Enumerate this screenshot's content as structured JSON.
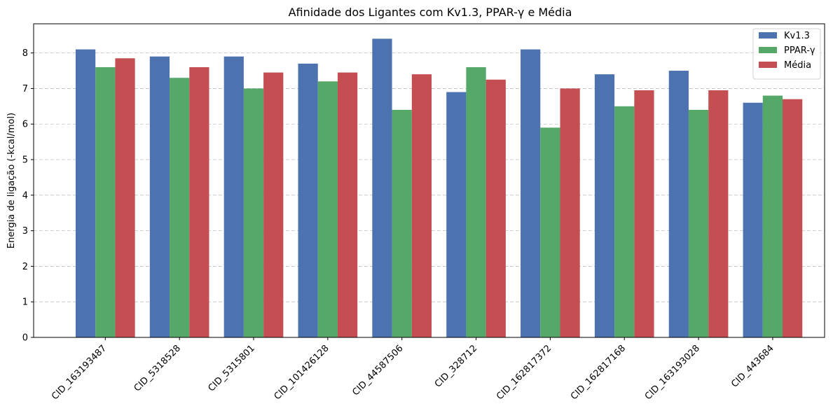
{
  "chart_data": {
    "type": "bar",
    "title": "Afinidade dos Ligantes com Kv1.3, PPAR-γ e Média",
    "xlabel": "",
    "ylabel": "Energia de ligação (-kcal/mol)",
    "ylim": [
      0,
      8.82
    ],
    "yticks": [
      0,
      1,
      2,
      3,
      4,
      5,
      6,
      7,
      8
    ],
    "grid": "y-dashed",
    "legend_position": "top-right",
    "categories": [
      "CID_163193487",
      "CID_5318528",
      "CID_5315801",
      "CID_101426128",
      "CID_44587506",
      "CID_328712",
      "CID_162817372",
      "CID_162817168",
      "CID_163193028",
      "CID_443684"
    ],
    "series": [
      {
        "name": "Kv1.3",
        "color": "#4c72b0",
        "values": [
          8.1,
          7.9,
          7.9,
          7.7,
          8.4,
          6.9,
          8.1,
          7.4,
          7.5,
          6.6
        ]
      },
      {
        "name": "PPAR-γ",
        "color": "#55a868",
        "values": [
          7.6,
          7.3,
          7.0,
          7.2,
          6.4,
          7.6,
          5.9,
          6.5,
          6.4,
          6.8
        ]
      },
      {
        "name": "Média",
        "color": "#c44e52",
        "values": [
          7.85,
          7.6,
          7.45,
          7.45,
          7.4,
          7.25,
          7.0,
          6.95,
          6.95,
          6.7
        ]
      }
    ]
  }
}
